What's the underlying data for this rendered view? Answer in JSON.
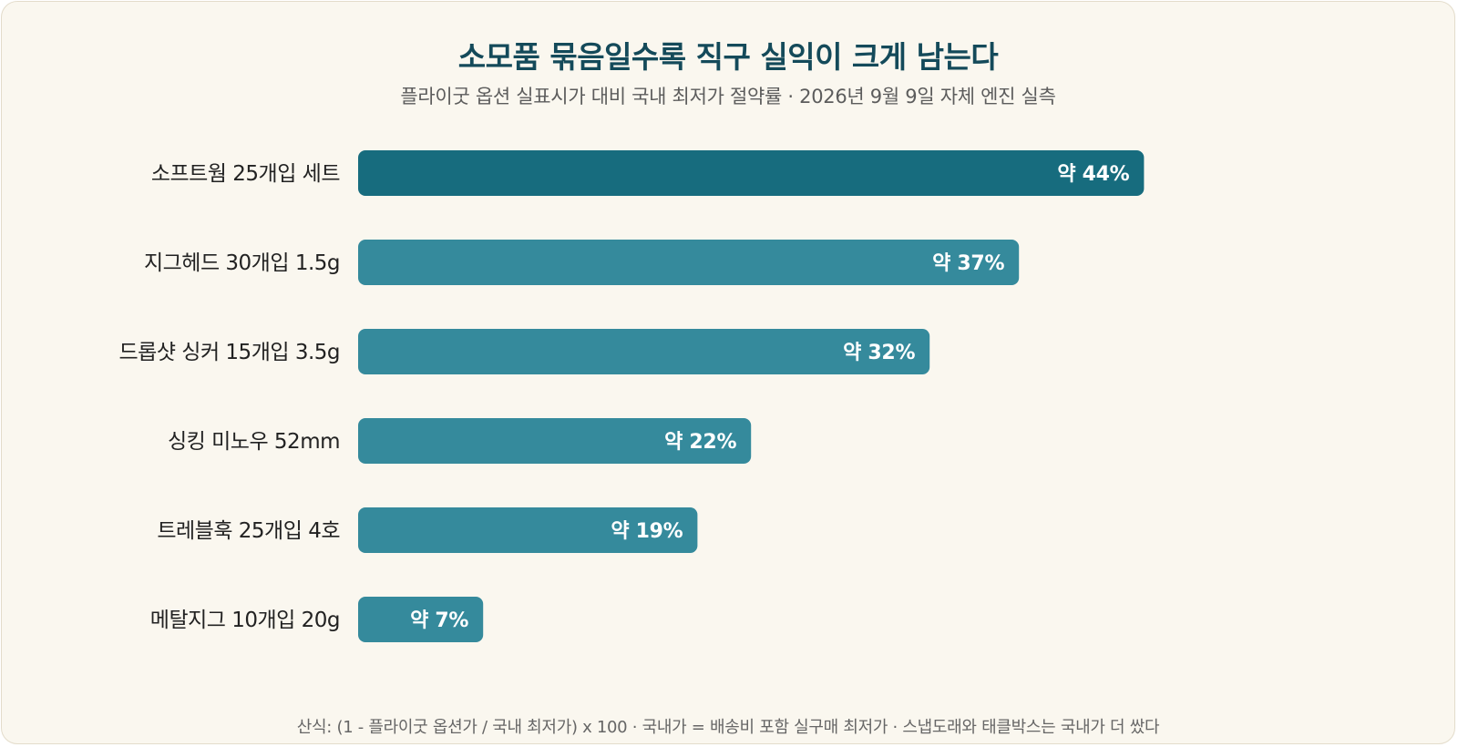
{
  "header": {
    "title": "소모품 묶음일수록 직구 실익이 크게 남는다",
    "subtitle": "플라이굿 옵션 실표시가 대비 국내 최저가 절약률 · 2026년 9월 9일 자체 엔진 실측"
  },
  "footer": {
    "note": "산식: (1 - 플라이굿 옵션가 / 국내 최저가) x 100 · 국내가 = 배송비 포함 실구매 최저가 · 스냅도래와 태클박스는 국내가 더 쌌다"
  },
  "chart_data": {
    "type": "bar",
    "orientation": "horizontal",
    "categories": [
      "소프트웜 25개입 세트",
      "지그헤드 30개입 1.5g",
      "드롭샷 싱커 15개입 3.5g",
      "싱킹 미노우 52mm",
      "트레블훅 25개입 4호",
      "메탈지그 10개입 20g"
    ],
    "values": [
      44,
      37,
      32,
      22,
      19,
      7
    ],
    "value_labels": [
      "약 44%",
      "약 37%",
      "약 32%",
      "약 22%",
      "약 19%",
      "약 7%"
    ],
    "xlim": [
      0,
      60
    ],
    "grid": false,
    "legend": "none",
    "colors": {
      "highlight": "#176c7e",
      "default": "#358a9c",
      "label_text": "#222222",
      "value_text": "#ffffff"
    },
    "highlight_index": 0
  }
}
